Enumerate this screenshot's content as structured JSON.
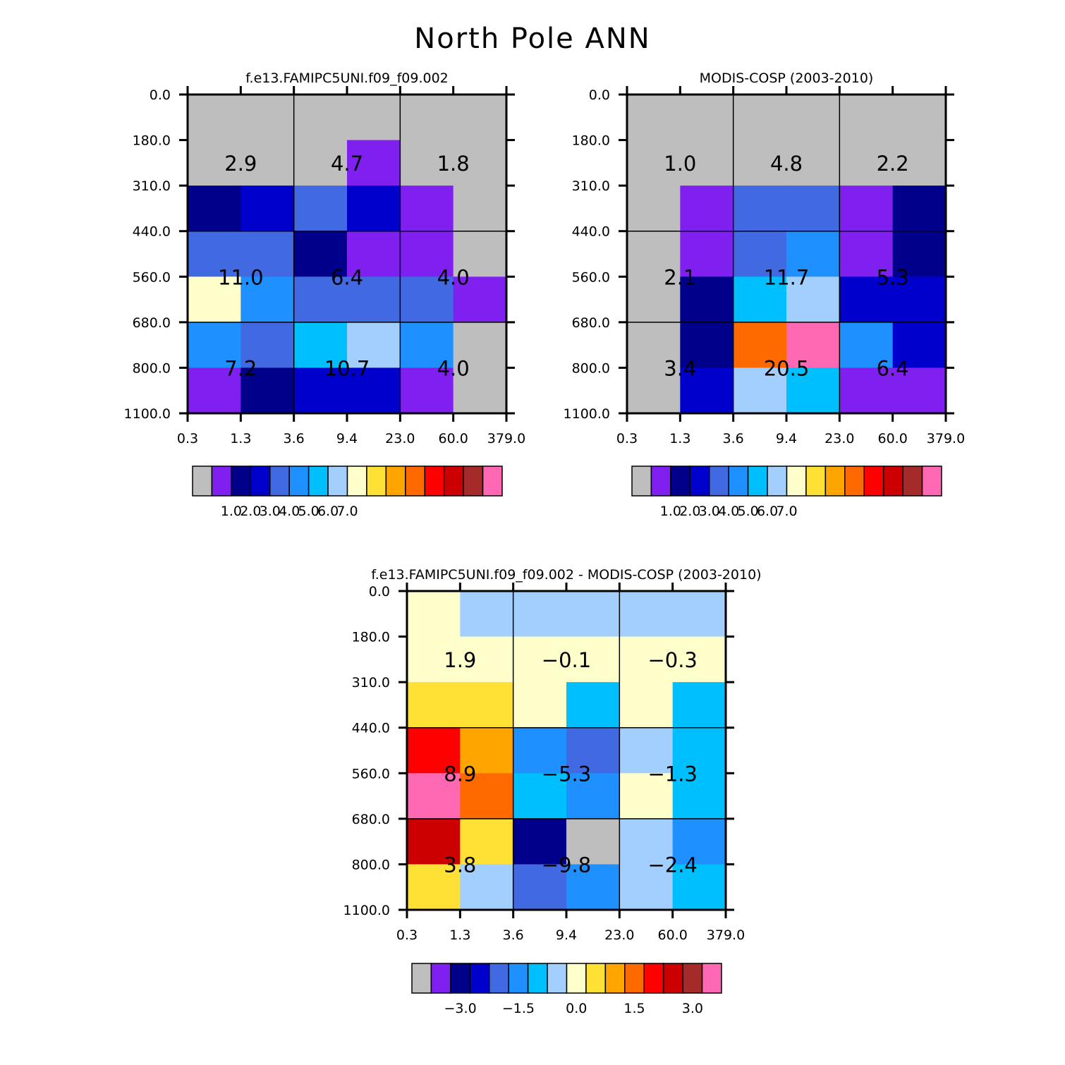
{
  "title": "North Pole ANN",
  "chart_data": [
    {
      "type": "heatmap",
      "title": "f.e13.FAMIPC5UNI.f09_f09.002",
      "x_ticks": [
        "0.3",
        "1.3",
        "3.6",
        "9.4",
        "23.0",
        "60.0",
        "379.0"
      ],
      "y_ticks": [
        "0.0",
        "180.0",
        "310.0",
        "440.0",
        "560.0",
        "680.0",
        "800.0",
        "1100.0"
      ],
      "cell_colors": [
        [
          "#BEBEBE",
          "#BEBEBE",
          "#BEBEBE",
          "#BEBEBE",
          "#BEBEBE",
          "#BEBEBE"
        ],
        [
          "#BEBEBE",
          "#BEBEBE",
          "#BEBEBE",
          "#8020F0",
          "#BEBEBE",
          "#BEBEBE"
        ],
        [
          "#00008B",
          "#0000CD",
          "#4169E1",
          "#0000CD",
          "#8020F0",
          "#BEBEBE"
        ],
        [
          "#4169E1",
          "#4169E1",
          "#00008B",
          "#8020F0",
          "#8020F0",
          "#BEBEBE"
        ],
        [
          "#FFFFCC",
          "#1E90FF",
          "#4169E1",
          "#4169E1",
          "#4169E1",
          "#8020F0"
        ],
        [
          "#1E90FF",
          "#4169E1",
          "#00BFFF",
          "#A2CFFE",
          "#1E90FF",
          "#BEBEBE"
        ],
        [
          "#8020F0",
          "#00008B",
          "#0000CD",
          "#0000CD",
          "#8020F0",
          "#BEBEBE"
        ]
      ],
      "totals": [
        [
          "2.9",
          "4.7",
          "1.8"
        ],
        [
          "11.0",
          "6.4",
          "4.0"
        ],
        [
          "7.2",
          "10.7",
          "4.0"
        ]
      ],
      "colorbar": {
        "colors": [
          "#BEBEBE",
          "#8020F0",
          "#00008B",
          "#0000CD",
          "#4169E1",
          "#1E90FF",
          "#00BFFF",
          "#A2CFFE",
          "#FFFFCC",
          "#FFE135",
          "#FFA500",
          "#FF6A00",
          "#FF0000",
          "#CC0000",
          "#A52A2A",
          "#FF69B4"
        ],
        "labels": [
          "1.0",
          "2.0",
          "3.0",
          "4.0",
          "5.0",
          "6.0",
          "7.0"
        ]
      }
    },
    {
      "type": "heatmap",
      "title": "MODIS-COSP (2003-2010)",
      "x_ticks": [
        "0.3",
        "1.3",
        "3.6",
        "9.4",
        "23.0",
        "60.0",
        "379.0"
      ],
      "y_ticks": [
        "0.0",
        "180.0",
        "310.0",
        "440.0",
        "560.0",
        "680.0",
        "800.0",
        "1100.0"
      ],
      "cell_colors": [
        [
          "#BEBEBE",
          "#BEBEBE",
          "#BEBEBE",
          "#BEBEBE",
          "#BEBEBE",
          "#BEBEBE"
        ],
        [
          "#BEBEBE",
          "#BEBEBE",
          "#BEBEBE",
          "#BEBEBE",
          "#BEBEBE",
          "#BEBEBE"
        ],
        [
          "#BEBEBE",
          "#8020F0",
          "#4169E1",
          "#4169E1",
          "#8020F0",
          "#00008B"
        ],
        [
          "#BEBEBE",
          "#8020F0",
          "#4169E1",
          "#1E90FF",
          "#8020F0",
          "#00008B"
        ],
        [
          "#BEBEBE",
          "#00008B",
          "#00BFFF",
          "#A2CFFE",
          "#0000CD",
          "#0000CD"
        ],
        [
          "#BEBEBE",
          "#00008B",
          "#FF6A00",
          "#FF69B4",
          "#1E90FF",
          "#0000CD"
        ],
        [
          "#BEBEBE",
          "#0000CD",
          "#A2CFFE",
          "#00BFFF",
          "#8020F0",
          "#8020F0"
        ]
      ],
      "totals": [
        [
          "1.0",
          "4.8",
          "2.2"
        ],
        [
          "2.1",
          "11.7",
          "5.3"
        ],
        [
          "3.4",
          "20.5",
          "6.4"
        ]
      ],
      "colorbar": {
        "colors": [
          "#BEBEBE",
          "#8020F0",
          "#00008B",
          "#0000CD",
          "#4169E1",
          "#1E90FF",
          "#00BFFF",
          "#A2CFFE",
          "#FFFFCC",
          "#FFE135",
          "#FFA500",
          "#FF6A00",
          "#FF0000",
          "#CC0000",
          "#A52A2A",
          "#FF69B4"
        ],
        "labels": [
          "1.0",
          "2.0",
          "3.0",
          "4.0",
          "5.0",
          "6.0",
          "7.0"
        ]
      }
    },
    {
      "type": "heatmap",
      "title": "f.e13.FAMIPC5UNI.f09_f09.002 - MODIS-COSP (2003-2010)",
      "x_ticks": [
        "0.3",
        "1.3",
        "3.6",
        "9.4",
        "23.0",
        "60.0",
        "379.0"
      ],
      "y_ticks": [
        "0.0",
        "180.0",
        "310.0",
        "440.0",
        "560.0",
        "680.0",
        "800.0",
        "1100.0"
      ],
      "cell_colors": [
        [
          "#FFFFCC",
          "#A2CFFE",
          "#A2CFFE",
          "#A2CFFE",
          "#A2CFFE",
          "#A2CFFE"
        ],
        [
          "#FFFFCC",
          "#FFFFCC",
          "#FFFFCC",
          "#FFFFCC",
          "#FFFFCC",
          "#FFFFCC"
        ],
        [
          "#FFE135",
          "#FFE135",
          "#FFFFCC",
          "#00BFFF",
          "#FFFFCC",
          "#00BFFF"
        ],
        [
          "#FF0000",
          "#FFA500",
          "#1E90FF",
          "#4169E1",
          "#A2CFFE",
          "#00BFFF"
        ],
        [
          "#FF69B4",
          "#FF6A00",
          "#00BFFF",
          "#1E90FF",
          "#FFFFCC",
          "#00BFFF"
        ],
        [
          "#CC0000",
          "#FFE135",
          "#00008B",
          "#BEBEBE",
          "#A2CFFE",
          "#1E90FF"
        ],
        [
          "#FFE135",
          "#A2CFFE",
          "#4169E1",
          "#1E90FF",
          "#A2CFFE",
          "#00BFFF"
        ]
      ],
      "totals": [
        [
          "1.9",
          "-0.1",
          "-0.3"
        ],
        [
          "8.9",
          "-5.3",
          "-1.3"
        ],
        [
          "3.8",
          "-9.8",
          "-2.4"
        ]
      ],
      "colorbar": {
        "colors": [
          "#BEBEBE",
          "#8020F0",
          "#00008B",
          "#0000CD",
          "#4169E1",
          "#1E90FF",
          "#00BFFF",
          "#A2CFFE",
          "#FFFFCC",
          "#FFE135",
          "#FFA500",
          "#FF6A00",
          "#FF0000",
          "#CC0000",
          "#A52A2A",
          "#FF69B4"
        ],
        "labels": [
          "-3.0",
          "-1.5",
          "0.0",
          "1.5",
          "3.0"
        ]
      }
    }
  ]
}
